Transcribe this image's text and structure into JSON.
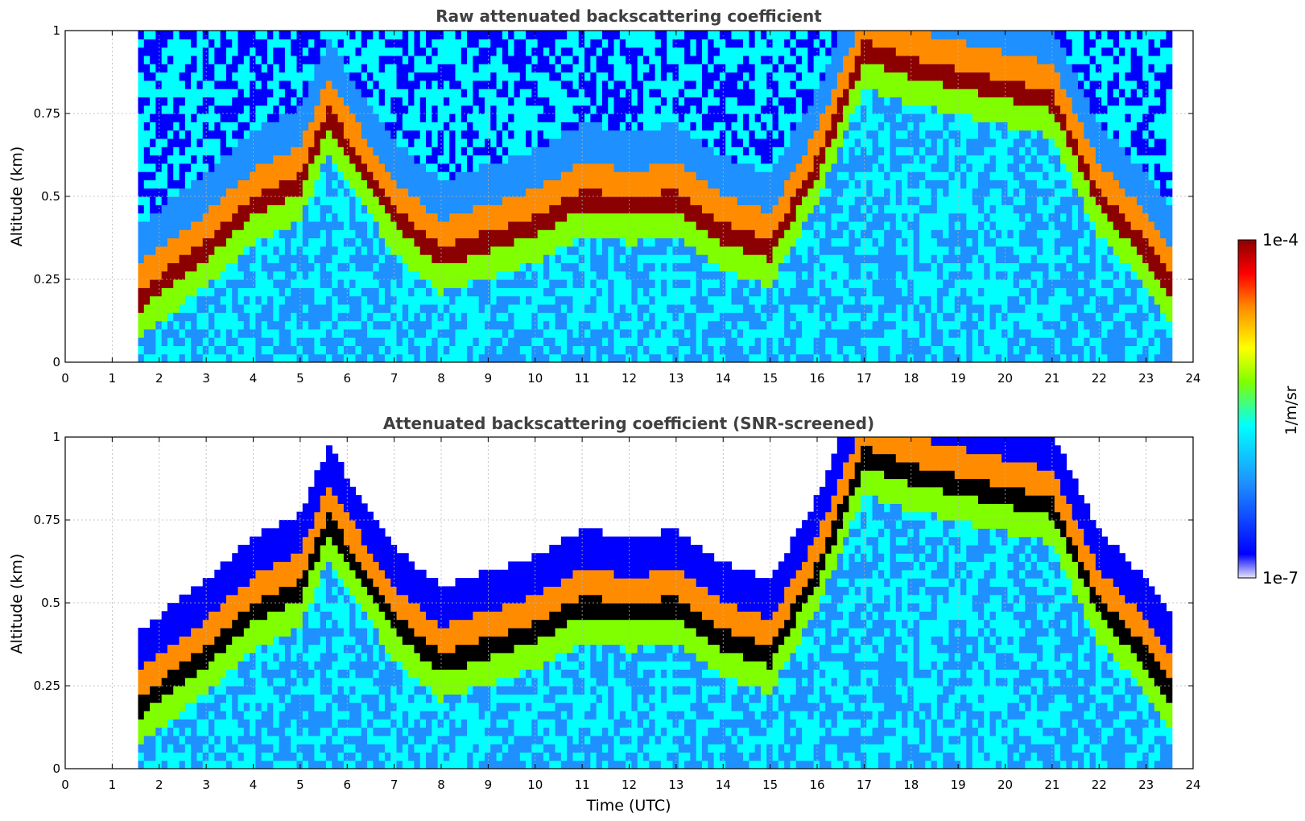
{
  "chart_data": [
    {
      "type": "heatmap",
      "title": "Raw attenuated backscattering coefficient",
      "xlabel": "",
      "ylabel": "Altitude (km)",
      "xlim": [
        0,
        24
      ],
      "ylim": [
        0,
        1
      ],
      "xticks": [
        "0",
        "1",
        "2",
        "3",
        "4",
        "5",
        "6",
        "7",
        "8",
        "9",
        "10",
        "11",
        "12",
        "13",
        "14",
        "15",
        "16",
        "17",
        "18",
        "19",
        "20",
        "21",
        "22",
        "23",
        "24"
      ],
      "yticks": [
        "0",
        "0.25",
        "0.5",
        "0.75",
        "1"
      ],
      "data_time_range": [
        1.55,
        23.55
      ],
      "mixing_layer_top_km": {
        "time": [
          1.6,
          3.0,
          4.0,
          5.0,
          5.6,
          7.0,
          8.0,
          10.0,
          11.0,
          12.0,
          13.0,
          14.0,
          15.0,
          16.0,
          17.0,
          18.0,
          21.0,
          22.0,
          23.0,
          23.5
        ],
        "altitude": [
          0.2,
          0.35,
          0.48,
          0.55,
          0.75,
          0.45,
          0.33,
          0.42,
          0.5,
          0.48,
          0.5,
          0.4,
          0.35,
          0.6,
          0.95,
          0.9,
          0.8,
          0.5,
          0.35,
          0.25
        ]
      },
      "grid": true
    },
    {
      "type": "heatmap",
      "title": "Attenuated backscattering coefficient (SNR-screened)",
      "xlabel": "Time (UTC)",
      "ylabel": "Altitude (km)",
      "xlim": [
        0,
        24
      ],
      "ylim": [
        0,
        1
      ],
      "xticks": [
        "0",
        "1",
        "2",
        "3",
        "4",
        "5",
        "6",
        "7",
        "8",
        "9",
        "10",
        "11",
        "12",
        "13",
        "14",
        "15",
        "16",
        "17",
        "18",
        "19",
        "20",
        "21",
        "22",
        "23",
        "24"
      ],
      "yticks": [
        "0",
        "0.25",
        "0.5",
        "0.75",
        "1"
      ],
      "data_time_range": [
        1.55,
        23.55
      ],
      "grid": true
    }
  ],
  "colorbar": {
    "max_label": "1e-4",
    "min_label": "1e-7",
    "unit_label": "1/m/sr",
    "colormap": "jet",
    "colors": [
      "#e6e6fa",
      "#0000ff",
      "#1e90ff",
      "#00ffff",
      "#7fff00",
      "#ffff00",
      "#ff8c00",
      "#ff0000",
      "#8b0000"
    ]
  }
}
